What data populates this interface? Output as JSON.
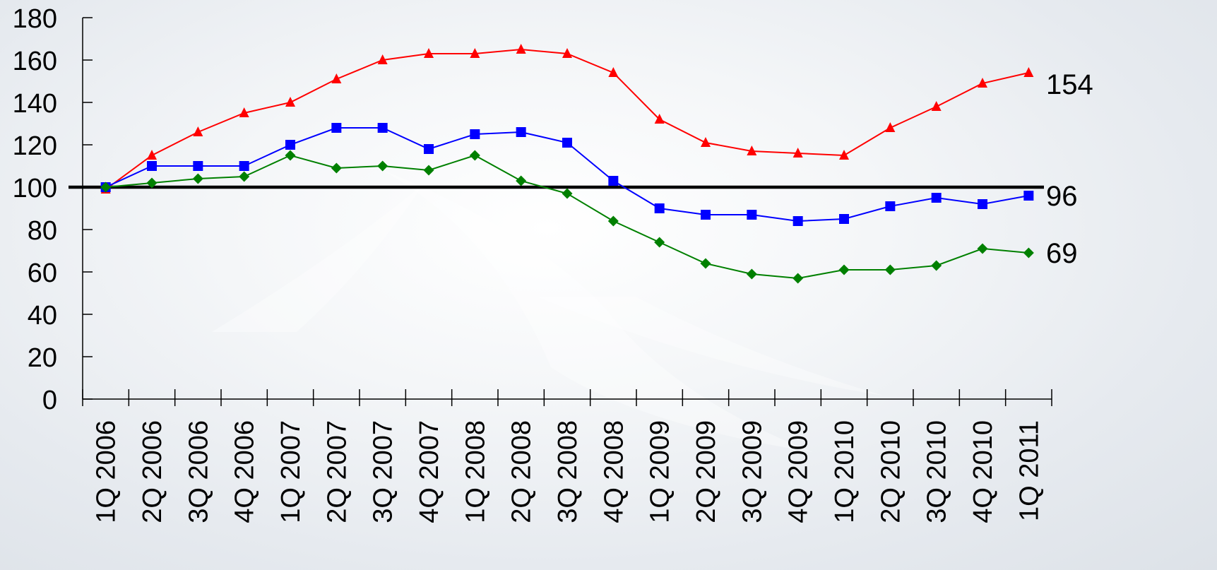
{
  "chart_data": {
    "type": "line",
    "title": "",
    "xlabel": "",
    "ylabel": "",
    "ylim": [
      0,
      180
    ],
    "y_ticks": [
      0,
      20,
      40,
      60,
      80,
      100,
      120,
      140,
      160,
      180
    ],
    "grid": false,
    "legend": "none",
    "reference_line": {
      "value": 100,
      "color": "#000000"
    },
    "categories": [
      "1Q 2006",
      "2Q 2006",
      "3Q 2006",
      "4Q 2006",
      "1Q 2007",
      "2Q 2007",
      "3Q 2007",
      "4Q 2007",
      "1Q 2008",
      "2Q 2008",
      "3Q 2008",
      "4Q 2008",
      "1Q 2009",
      "2Q 2009",
      "3Q 2009",
      "4Q 2009",
      "1Q 2010",
      "2Q 2010",
      "3Q 2010",
      "4Q 2010",
      "1Q 2011"
    ],
    "series": [
      {
        "marker": "triangle",
        "color": "#ff0000",
        "end_label": "154",
        "values": [
          99,
          115,
          126,
          135,
          140,
          151,
          160,
          163,
          163,
          165,
          163,
          154,
          132,
          121,
          117,
          116,
          115,
          128,
          138,
          149,
          154
        ]
      },
      {
        "marker": "square",
        "color": "#0000ff",
        "end_label": "96",
        "values": [
          100,
          110,
          110,
          110,
          120,
          128,
          128,
          118,
          125,
          126,
          121,
          103,
          90,
          87,
          87,
          84,
          85,
          91,
          95,
          92,
          96
        ]
      },
      {
        "marker": "diamond",
        "color": "#008000",
        "end_label": "69",
        "values": [
          100,
          102,
          104,
          105,
          115,
          109,
          110,
          108,
          115,
          103,
          97,
          84,
          74,
          64,
          59,
          57,
          61,
          61,
          63,
          71,
          69
        ]
      }
    ]
  }
}
